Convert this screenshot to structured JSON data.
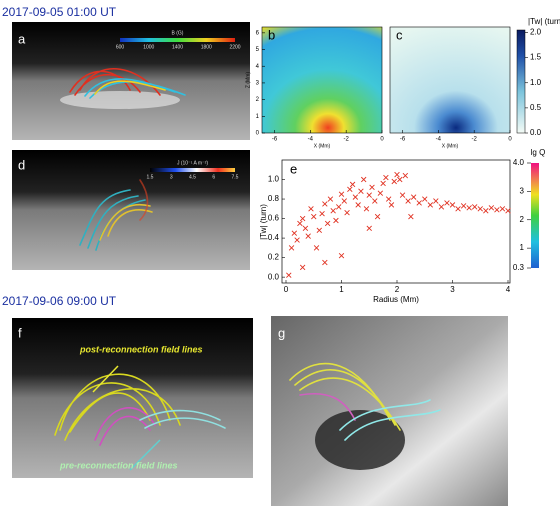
{
  "headers": [
    "2017-09-05 01:00 UT",
    "2017-09-06 09:00 UT"
  ],
  "panel_labels": [
    "a",
    "b",
    "c",
    "d",
    "e",
    "f",
    "g"
  ],
  "panel_a": {
    "colorbar_label": "B (G)",
    "colorbar_ticks": [
      600,
      1000,
      1400,
      1800,
      2200
    ]
  },
  "panel_d": {
    "colorbar_label": "J (10⁻¹ A m⁻²)",
    "colorbar_ticks": [
      1.5,
      3,
      4.5,
      6,
      7.5
    ]
  },
  "panels_bc": {
    "xlabel": "X (Mm)",
    "ylabel": "Z (Mm)",
    "xlim": [
      -6.7,
      0
    ],
    "ylim": [
      0,
      6.35
    ],
    "xticks": [
      -6,
      -4,
      -2,
      0
    ],
    "yticks": [
      0,
      1,
      2,
      3,
      4,
      5,
      6
    ],
    "colorbar_title": "|Tw| (turn)",
    "colorbar_lim": [
      0,
      2.05
    ],
    "colorbar_ticks": [
      {
        "value": 0,
        "label": "0.0"
      },
      0.5,
      {
        "value": 1,
        "label": "1.0"
      },
      1.5,
      {
        "value": 2,
        "label": "2.0"
      }
    ]
  },
  "lg_q": {
    "title": "lg Q",
    "lim": [
      0.3,
      4
    ],
    "ticks": [
      0.3,
      1,
      2,
      3,
      {
        "value": 4,
        "label": "4.0"
      }
    ]
  },
  "annotations": [
    "post-reconnection field lines",
    "pre-reconnection field lines"
  ],
  "chart_data": {
    "type": "scatter",
    "xlabel": "Radius (Mm)",
    "ylabel": "|Tw| (turn)",
    "color": "#e03020",
    "x": [
      0.05,
      0.1,
      0.15,
      0.2,
      0.25,
      0.3,
      0.35,
      0.4,
      0.45,
      0.5,
      0.55,
      0.6,
      0.65,
      0.7,
      0.75,
      0.8,
      0.85,
      0.9,
      0.95,
      1.0,
      1.05,
      1.1,
      1.15,
      1.2,
      1.25,
      1.3,
      1.35,
      1.4,
      1.45,
      1.5,
      1.55,
      1.6,
      1.65,
      1.7,
      1.75,
      1.8,
      1.85,
      1.9,
      1.95,
      2.0,
      2.05,
      2.1,
      2.15,
      2.2,
      2.3,
      2.4,
      2.5,
      2.6,
      2.7,
      2.8,
      2.9,
      3.0,
      3.1,
      3.2,
      3.3,
      3.4,
      3.5,
      3.6,
      3.7,
      3.8,
      3.9,
      4.0,
      1.0,
      0.7,
      0.3,
      2.25,
      1.5
    ],
    "values": [
      0.02,
      0.3,
      0.45,
      0.38,
      0.55,
      0.6,
      0.5,
      0.42,
      0.7,
      0.62,
      0.3,
      0.48,
      0.65,
      0.75,
      0.55,
      0.8,
      0.68,
      0.58,
      0.72,
      0.85,
      0.78,
      0.66,
      0.9,
      0.95,
      0.82,
      0.74,
      0.88,
      1.0,
      0.7,
      0.84,
      0.92,
      0.78,
      0.62,
      0.86,
      0.96,
      1.02,
      0.8,
      0.74,
      0.98,
      1.05,
      1.0,
      0.84,
      1.04,
      0.78,
      0.82,
      0.76,
      0.8,
      0.74,
      0.78,
      0.72,
      0.76,
      0.74,
      0.7,
      0.73,
      0.71,
      0.72,
      0.7,
      0.68,
      0.71,
      0.69,
      0.7,
      0.68,
      0.22,
      0.15,
      0.1,
      0.62,
      0.5
    ],
    "xlim": [
      0,
      4
    ],
    "ylim": [
      -0.06,
      1.2
    ],
    "xticks": [
      0,
      1,
      2,
      3,
      4
    ],
    "yticks": [
      {
        "value": 0,
        "label": "0.0"
      },
      0.2,
      0.4,
      0.6,
      0.8,
      {
        "value": 1,
        "label": "1.0"
      }
    ]
  }
}
